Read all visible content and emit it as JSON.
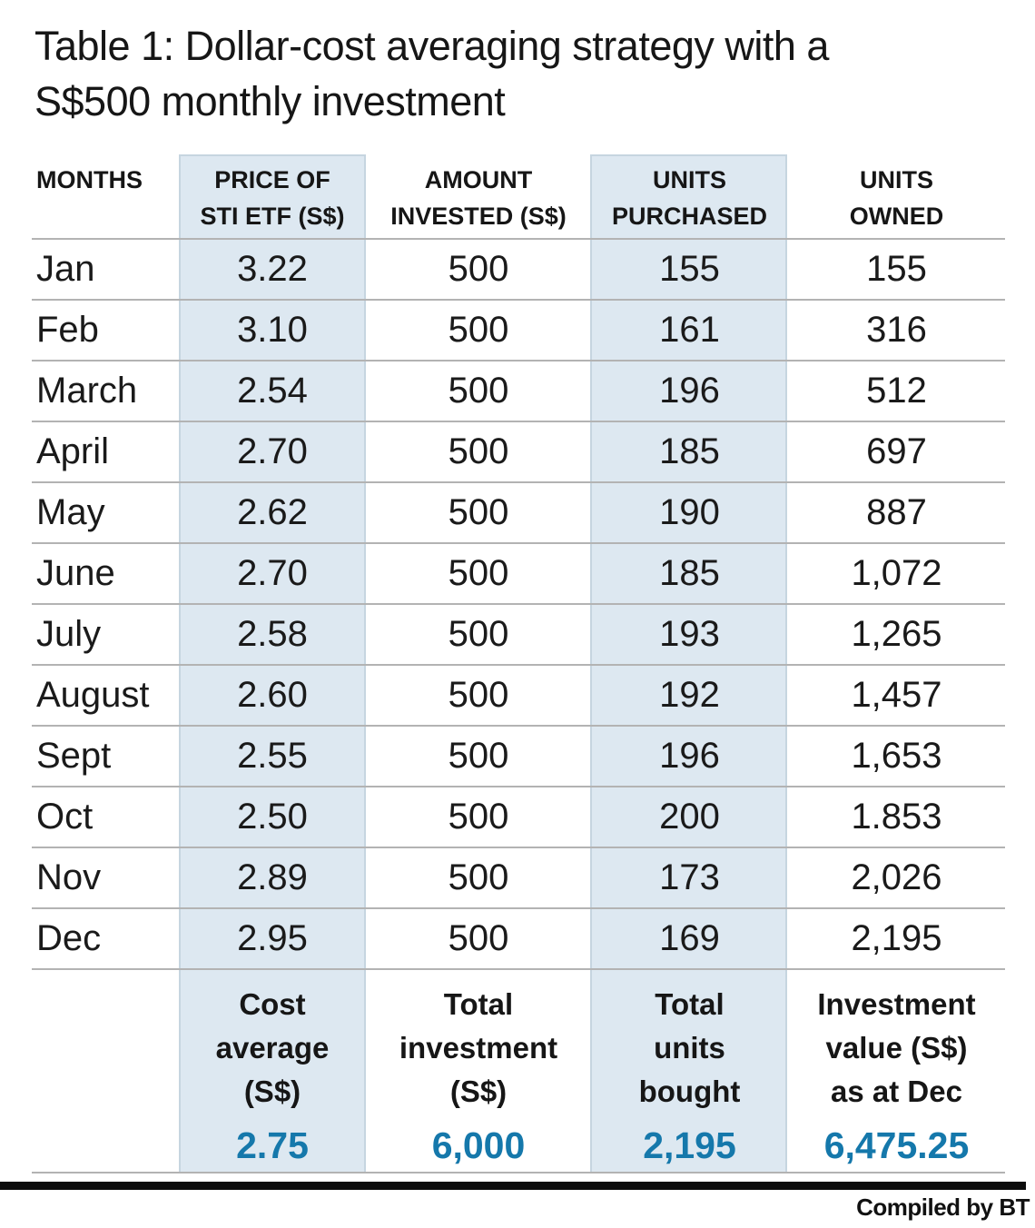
{
  "title": "Table 1: Dollar-cost averaging strategy with a\nS$500 monthly investment",
  "display": {
    "headers": [
      "MONTHS",
      "PRICE OF\nSTI ETF (S$)",
      "AMOUNT\nINVESTED (S$)",
      "UNITS\nPURCHASED",
      "UNITS\nOWNED"
    ],
    "summary": [
      {
        "label": "Cost\naverage\n(S$)",
        "value": "2.75"
      },
      {
        "label": "Total\ninvestment\n(S$)",
        "value": "6,000"
      },
      {
        "label": "Total\nunits\nbought",
        "value": "2,195"
      },
      {
        "label": "Investment\nvalue (S$)\nas at Dec",
        "value": "6,475.25"
      }
    ]
  },
  "chart_data": {
    "type": "table",
    "title": "Table 1: Dollar-cost averaging strategy with a S$500 monthly investment",
    "columns": [
      "MONTHS",
      "PRICE OF STI ETF (S$)",
      "AMOUNT INVESTED (S$)",
      "UNITS PURCHASED",
      "UNITS OWNED"
    ],
    "shaded_columns": [
      "PRICE OF STI ETF (S$)",
      "UNITS PURCHASED"
    ],
    "rows": [
      [
        "Jan",
        "3.22",
        "500",
        "155",
        "155"
      ],
      [
        "Feb",
        "3.10",
        "500",
        "161",
        "316"
      ],
      [
        "March",
        "2.54",
        "500",
        "196",
        "512"
      ],
      [
        "April",
        "2.70",
        "500",
        "185",
        "697"
      ],
      [
        "May",
        "2.62",
        "500",
        "190",
        "887"
      ],
      [
        "June",
        "2.70",
        "500",
        "185",
        "1,072"
      ],
      [
        "July",
        "2.58",
        "500",
        "193",
        "1,265"
      ],
      [
        "August",
        "2.60",
        "500",
        "192",
        "1,457"
      ],
      [
        "Sept",
        "2.55",
        "500",
        "196",
        "1,653"
      ],
      [
        "Oct",
        "2.50",
        "500",
        "200",
        "1.853"
      ],
      [
        "Nov",
        "2.89",
        "500",
        "173",
        "2,026"
      ],
      [
        "Dec",
        "2.95",
        "500",
        "169",
        "2,195"
      ]
    ],
    "summary": {
      "cost_average_sgd": "2.75",
      "total_investment_sgd": "6,000",
      "total_units_bought": "2,195",
      "investment_value_sgd_as_at_dec": "6,475.25"
    }
  },
  "footer": {
    "credit": "Compiled by BT"
  },
  "colors": {
    "column_shade": "#dde8f1",
    "shade_border": "#c6d5e0",
    "accent_blue": "#1578ab",
    "gridline": "#b3b3b3",
    "bar_black": "#0d0d0d"
  }
}
